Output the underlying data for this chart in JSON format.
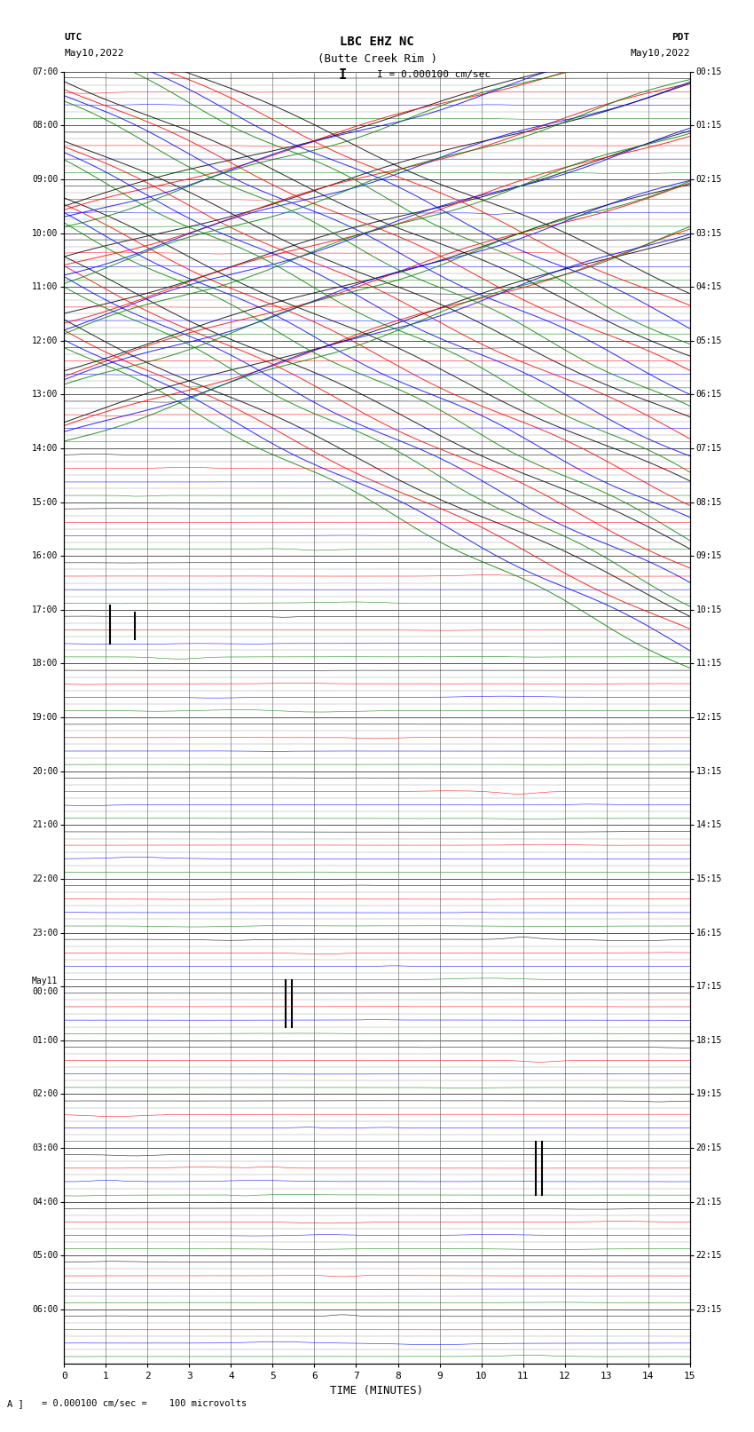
{
  "title_line1": "LBC EHZ NC",
  "title_line2": "(Butte Creek Rim )",
  "scale_text": "I = 0.000100 cm/sec",
  "left_label_top": "UTC",
  "left_label_date": "May10,2022",
  "right_label_top": "PDT",
  "right_label_date": "May10,2022",
  "xlabel": "TIME (MINUTES)",
  "bottom_note": "= 0.000100 cm/sec =    100 microvolts",
  "utc_times": [
    "07:00",
    "08:00",
    "09:00",
    "10:00",
    "11:00",
    "12:00",
    "13:00",
    "14:00",
    "15:00",
    "16:00",
    "17:00",
    "18:00",
    "19:00",
    "20:00",
    "21:00",
    "22:00",
    "23:00",
    "May11\n00:00",
    "01:00",
    "02:00",
    "03:00",
    "04:00",
    "05:00",
    "06:00"
  ],
  "pdt_times": [
    "00:15",
    "01:15",
    "02:15",
    "03:15",
    "04:15",
    "05:15",
    "06:15",
    "07:15",
    "08:15",
    "09:15",
    "10:15",
    "11:15",
    "12:15",
    "13:15",
    "14:15",
    "15:15",
    "16:15",
    "17:15",
    "18:15",
    "19:15",
    "20:15",
    "21:15",
    "22:15",
    "23:15"
  ],
  "num_rows": 24,
  "traces_per_row": 4,
  "colors": [
    "black",
    "red",
    "blue",
    "green"
  ],
  "bg_color": "white",
  "xmin": 0,
  "xmax": 15,
  "figwidth": 8.5,
  "figheight": 16.13
}
